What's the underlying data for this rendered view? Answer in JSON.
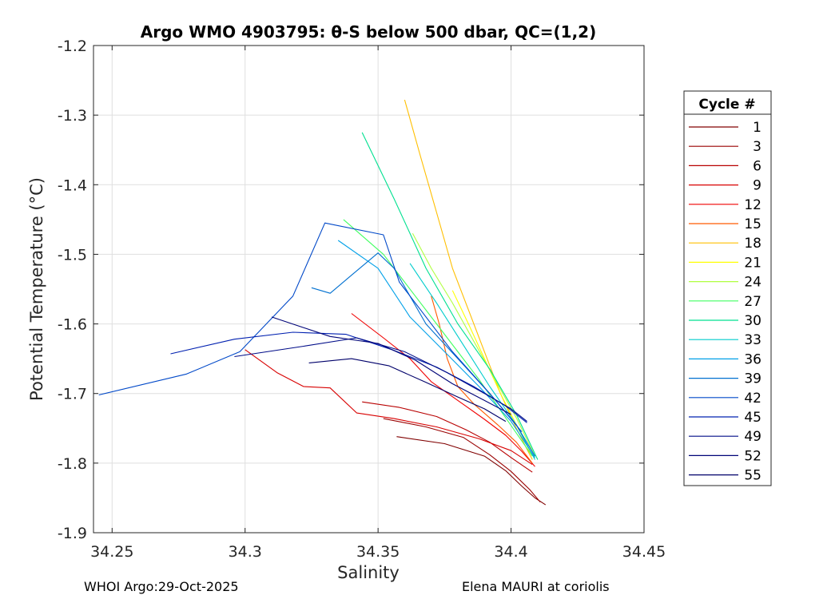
{
  "chart_data": {
    "type": "line",
    "title": "Argo WMO 4903795: θ-S below 500 dbar,  QC=(1,2)",
    "xlabel": "Salinity",
    "ylabel": "Potential Temperature (°C)",
    "xlim": [
      34.243,
      34.45
    ],
    "ylim": [
      -1.9,
      -1.2
    ],
    "xticks": [
      34.25,
      34.3,
      34.35,
      34.4,
      34.45
    ],
    "xticklabels": [
      "34.25",
      "34.3",
      "34.35",
      "34.4",
      "34.45"
    ],
    "yticks": [
      -1.2,
      -1.3,
      -1.4,
      -1.5,
      -1.6,
      -1.7,
      -1.8,
      -1.9
    ],
    "yticklabels": [
      "-1.2",
      "-1.3",
      "-1.4",
      "-1.5",
      "-1.6",
      "-1.7",
      "-1.8",
      "-1.9"
    ],
    "grid": true,
    "legend": {
      "title": "Cycle #",
      "position": "right-outside"
    },
    "series": [
      {
        "name": "1",
        "color": "#800000",
        "x": [
          34.357,
          34.375,
          34.39,
          34.398,
          34.404,
          34.409,
          34.413
        ],
        "y": [
          -1.762,
          -1.772,
          -1.79,
          -1.811,
          -1.833,
          -1.85,
          -1.86
        ]
      },
      {
        "name": "3",
        "color": "#9a0000",
        "x": [
          34.352,
          34.368,
          34.382,
          34.392,
          34.4,
          34.407,
          34.411
        ],
        "y": [
          -1.736,
          -1.748,
          -1.763,
          -1.788,
          -1.812,
          -1.838,
          -1.856
        ]
      },
      {
        "name": "6",
        "color": "#b80000",
        "x": [
          34.344,
          34.358,
          34.372,
          34.383,
          34.392,
          34.4,
          34.408
        ],
        "y": [
          -1.712,
          -1.72,
          -1.733,
          -1.752,
          -1.77,
          -1.792,
          -1.813
        ]
      },
      {
        "name": "9",
        "color": "#d80000",
        "x": [
          34.3,
          34.312,
          34.322,
          34.332,
          34.342,
          34.356,
          34.372,
          34.388,
          34.4,
          34.408
        ],
        "y": [
          -1.637,
          -1.67,
          -1.69,
          -1.692,
          -1.728,
          -1.736,
          -1.748,
          -1.765,
          -1.782,
          -1.802
        ]
      },
      {
        "name": "12",
        "color": "#f00000",
        "x": [
          34.34,
          34.352,
          34.362,
          34.37,
          34.38,
          34.39,
          34.398,
          34.404,
          34.409
        ],
        "y": [
          -1.585,
          -1.62,
          -1.65,
          -1.683,
          -1.71,
          -1.737,
          -1.76,
          -1.783,
          -1.805
        ]
      },
      {
        "name": "15",
        "color": "#ff5a00",
        "x": [
          34.37,
          34.373,
          34.376,
          34.38,
          34.386,
          34.395,
          34.402,
          34.408
        ],
        "y": [
          -1.56,
          -1.6,
          -1.65,
          -1.69,
          -1.715,
          -1.745,
          -1.77,
          -1.8
        ]
      },
      {
        "name": "18",
        "color": "#ffbf00",
        "x": [
          34.36,
          34.366,
          34.372,
          34.378,
          34.384,
          34.39,
          34.396,
          34.402,
          34.408
        ],
        "y": [
          -1.278,
          -1.36,
          -1.44,
          -1.52,
          -1.58,
          -1.64,
          -1.7,
          -1.75,
          -1.795
        ]
      },
      {
        "name": "21",
        "color": "#ffff00",
        "x": [
          34.378,
          34.384,
          34.39,
          34.396,
          34.402,
          34.408
        ],
        "y": [
          -1.552,
          -1.6,
          -1.65,
          -1.7,
          -1.745,
          -1.79
        ]
      },
      {
        "name": "24",
        "color": "#b0ff40",
        "x": [
          34.363,
          34.37,
          34.378,
          34.386,
          34.394,
          34.402,
          34.409
        ],
        "y": [
          -1.47,
          -1.52,
          -1.57,
          -1.625,
          -1.68,
          -1.735,
          -1.79
        ]
      },
      {
        "name": "27",
        "color": "#40ff60",
        "x": [
          34.337,
          34.352,
          34.364,
          34.376,
          34.388,
          34.398,
          34.408
        ],
        "y": [
          -1.45,
          -1.5,
          -1.56,
          -1.62,
          -1.68,
          -1.735,
          -1.79
        ]
      },
      {
        "name": "30",
        "color": "#00e090",
        "x": [
          34.344,
          34.356,
          34.368,
          34.38,
          34.392,
          34.402,
          34.41
        ],
        "y": [
          -1.325,
          -1.42,
          -1.52,
          -1.6,
          -1.665,
          -1.73,
          -1.795
        ]
      },
      {
        "name": "33",
        "color": "#00cccc",
        "x": [
          34.362,
          34.372,
          34.382,
          34.392,
          34.402,
          34.409
        ],
        "y": [
          -1.513,
          -1.57,
          -1.63,
          -1.69,
          -1.745,
          -1.795
        ]
      },
      {
        "name": "36",
        "color": "#00a0e8",
        "x": [
          34.335,
          34.35,
          34.362,
          34.375,
          34.388,
          34.4,
          34.409
        ],
        "y": [
          -1.48,
          -1.52,
          -1.59,
          -1.64,
          -1.69,
          -1.74,
          -1.792
        ]
      },
      {
        "name": "39",
        "color": "#0070d0",
        "x": [
          34.325,
          34.332,
          34.34,
          34.35,
          34.356,
          34.368,
          34.38,
          34.392,
          34.402,
          34.409
        ],
        "y": [
          -1.548,
          -1.556,
          -1.53,
          -1.498,
          -1.52,
          -1.6,
          -1.65,
          -1.7,
          -1.745,
          -1.79
        ]
      },
      {
        "name": "42",
        "color": "#0048c8",
        "x": [
          34.245,
          34.278,
          34.298,
          34.318,
          34.33,
          34.352,
          34.358,
          34.366,
          34.378,
          34.392,
          34.404
        ],
        "y": [
          -1.702,
          -1.672,
          -1.64,
          -1.56,
          -1.455,
          -1.472,
          -1.54,
          -1.58,
          -1.64,
          -1.7,
          -1.755
        ]
      },
      {
        "name": "45",
        "color": "#0020b0",
        "x": [
          34.272,
          34.296,
          34.318,
          34.338,
          34.356,
          34.372,
          34.386,
          34.398,
          34.406
        ],
        "y": [
          -1.643,
          -1.622,
          -1.612,
          -1.615,
          -1.638,
          -1.662,
          -1.69,
          -1.718,
          -1.742
        ]
      },
      {
        "name": "49",
        "color": "#000c88",
        "x": [
          34.296,
          34.322,
          34.342,
          34.36,
          34.376,
          34.39,
          34.4,
          34.406
        ],
        "y": [
          -1.647,
          -1.632,
          -1.62,
          -1.64,
          -1.67,
          -1.7,
          -1.722,
          -1.74
        ]
      },
      {
        "name": "52",
        "color": "#000478",
        "x": [
          34.31,
          34.332,
          34.35,
          34.364,
          34.378,
          34.39,
          34.4
        ],
        "y": [
          -1.59,
          -1.618,
          -1.628,
          -1.652,
          -1.686,
          -1.71,
          -1.73
        ]
      },
      {
        "name": "55",
        "color": "#00006a",
        "x": [
          34.324,
          34.34,
          34.354,
          34.368,
          34.38,
          34.39,
          34.398
        ],
        "y": [
          -1.656,
          -1.65,
          -1.66,
          -1.684,
          -1.705,
          -1.722,
          -1.74
        ]
      }
    ]
  },
  "footer": {
    "left": "WHOI Argo:29-Oct-2025",
    "right": "Elena MAURI at coriolis"
  }
}
